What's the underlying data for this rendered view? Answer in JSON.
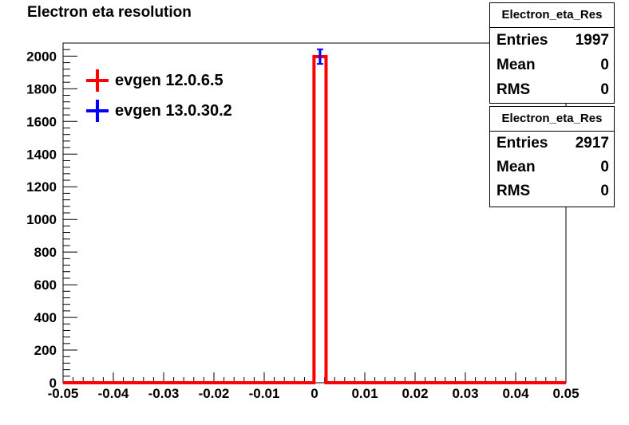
{
  "chart_data": {
    "type": "histogram",
    "title": "Electron eta resolution",
    "xlabel": "",
    "ylabel": "",
    "xlim": [
      -0.05,
      0.05
    ],
    "ylim": [
      0,
      2080
    ],
    "x_ticks": [
      -0.05,
      -0.04,
      -0.03,
      -0.02,
      -0.01,
      0,
      0.01,
      0.02,
      0.03,
      0.04,
      0.05
    ],
    "x_tick_labels": [
      "-0.05",
      "-0.04",
      "-0.03",
      "-0.02",
      "-0.01",
      "0",
      "0.01",
      "0.02",
      "0.03",
      "0.04",
      "0.05"
    ],
    "y_ticks": [
      0,
      200,
      400,
      600,
      800,
      1000,
      1200,
      1400,
      1600,
      1800,
      2000
    ],
    "y_tick_labels": [
      "0",
      "200",
      "400",
      "600",
      "800",
      "1000",
      "1200",
      "1400",
      "1600",
      "1800",
      "2000"
    ],
    "grid": false,
    "legend_position": "top-left",
    "series": [
      {
        "name": "evgen 12.0.6.5",
        "color": "#ff0000",
        "bin_edges": [
          -0.0001,
          0.0023
        ],
        "values": [
          1997
        ],
        "errors": [
          44.7
        ]
      },
      {
        "name": "evgen 13.0.30.2",
        "color": "#0000ff",
        "bin_edges": [
          -0.0001,
          0.0023
        ],
        "values": [
          1997
        ],
        "errors": [
          44.7
        ]
      }
    ],
    "stats_boxes": [
      {
        "title": "Electron_eta_Res",
        "rows": [
          {
            "label": "Entries",
            "value": "1997"
          },
          {
            "label": "Mean",
            "value": "0"
          },
          {
            "label": "RMS",
            "value": "0"
          }
        ]
      },
      {
        "title": "Electron_eta_Res",
        "rows": [
          {
            "label": "Entries",
            "value": "2917"
          },
          {
            "label": "Mean",
            "value": "0"
          },
          {
            "label": "RMS",
            "value": "0"
          }
        ]
      }
    ]
  }
}
